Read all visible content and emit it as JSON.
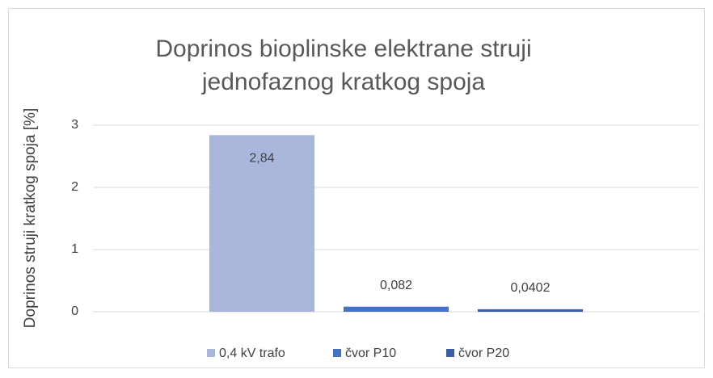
{
  "chart_data": {
    "type": "bar",
    "title": [
      "Doprinos bioplinske elektrane struji",
      "jednofaznog kratkog spoja"
    ],
    "y_label": "Doprinos struji kratkog spoja [%]",
    "categories": [
      null
    ],
    "series": [
      {
        "name": "0,4 kV trafo",
        "color": "#a9b7dc",
        "values": [
          2.84
        ],
        "value_labels": [
          "2,84"
        ]
      },
      {
        "name": "čvor P10",
        "color": "#4472c4",
        "values": [
          0.082
        ],
        "value_labels": [
          "0,082"
        ]
      },
      {
        "name": "čvor P20",
        "color": "#3a5ea9",
        "values": [
          0.0402
        ],
        "value_labels": [
          "0,0402"
        ]
      }
    ],
    "ylim": [
      0,
      3
    ],
    "yticks": [
      0,
      1,
      2,
      3
    ],
    "grid": true,
    "legend": "bottom"
  }
}
